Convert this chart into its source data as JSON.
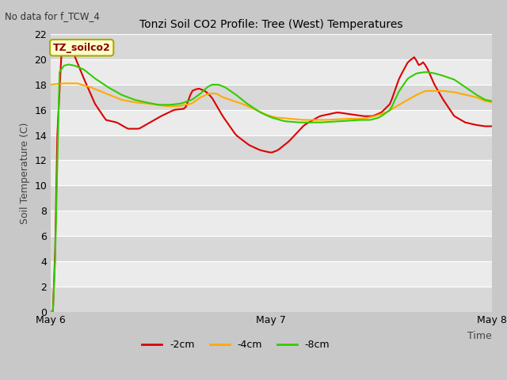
{
  "title": "Tonzi Soil CO2 Profile: Tree (West) Temperatures",
  "no_data_text": "No data for f_TCW_4",
  "ylabel": "Soil Temperature (C)",
  "xlabel_right": "Time",
  "ylim": [
    0,
    22
  ],
  "yticks": [
    0,
    2,
    4,
    6,
    8,
    10,
    12,
    14,
    16,
    18,
    20,
    22
  ],
  "xtick_positions": [
    0,
    1.0,
    2.0
  ],
  "x_tick_labels": [
    "May 6",
    "May 7",
    "May 8"
  ],
  "xlim": [
    0,
    2.0
  ],
  "fig_bg_color": "#c8c8c8",
  "plot_bg_color": "#e8e8e8",
  "band_dark": "#d8d8d8",
  "band_light": "#ebebeb",
  "legend_label": "TZ_soilco2",
  "legend_bg": "#ffffcc",
  "legend_border": "#aaaa00",
  "series": {
    "-2cm": {
      "color": "#dd0000",
      "label": "-2cm"
    },
    "-4cm": {
      "color": "#ffaa00",
      "label": "-4cm"
    },
    "-8cm": {
      "color": "#33cc00",
      "label": "-8cm"
    }
  }
}
